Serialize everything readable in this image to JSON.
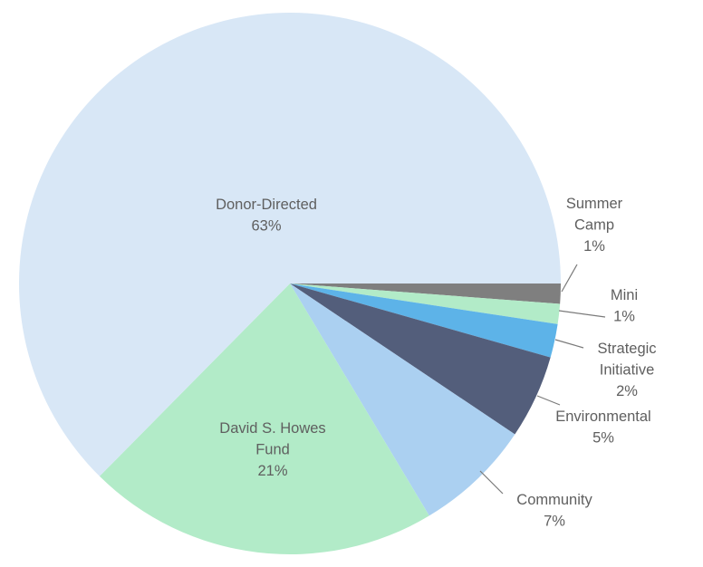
{
  "chart_data": {
    "type": "pie",
    "start_angle_deg": 0,
    "direction": "clockwise",
    "slices": [
      {
        "key": "summer",
        "label": [
          "Summer",
          "Camp"
        ],
        "pct_text": "1%",
        "value": 1.2,
        "color": "#7f7f7f"
      },
      {
        "key": "mini",
        "label": [
          "Mini"
        ],
        "pct_text": "1%",
        "value": 1.2,
        "color": "#b2ebc8"
      },
      {
        "key": "strategic",
        "label": [
          "Strategic",
          "Initiative"
        ],
        "pct_text": "2%",
        "value": 2.0,
        "color": "#5db3e8"
      },
      {
        "key": "environmental",
        "label": [
          "Environmental"
        ],
        "pct_text": "5%",
        "value": 5.0,
        "color": "#535e7b"
      },
      {
        "key": "community",
        "label": [
          "Community"
        ],
        "pct_text": "7%",
        "value": 7.0,
        "color": "#abd0f1"
      },
      {
        "key": "howes",
        "label": [
          "David S. Howes",
          "Fund"
        ],
        "pct_text": "21%",
        "value": 21.0,
        "color": "#b2ebc8"
      },
      {
        "key": "donor",
        "label": [
          "Donor-Directed"
        ],
        "pct_text": "63%",
        "value": 62.6,
        "color": "#d8e7f6"
      }
    ]
  }
}
